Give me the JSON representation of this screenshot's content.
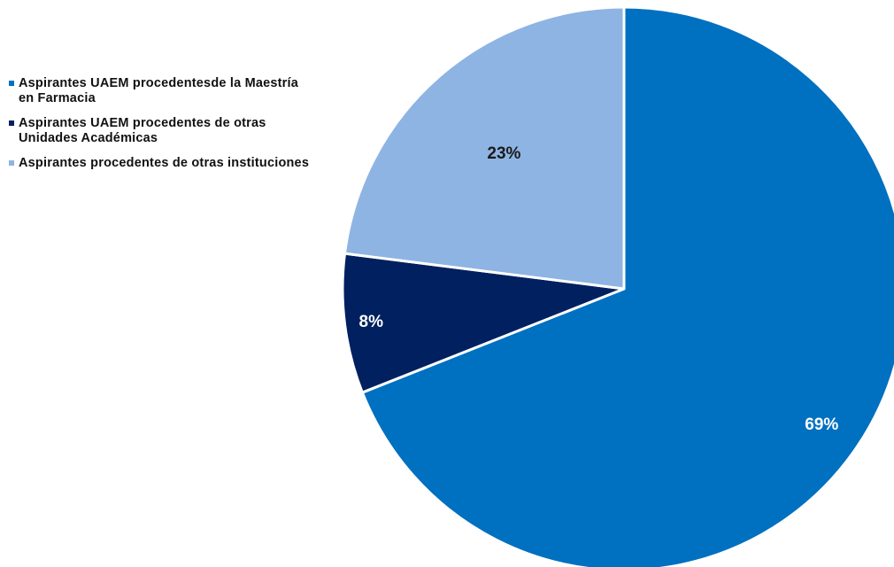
{
  "chart_data": {
    "type": "pie",
    "title": "",
    "legend_position": "left",
    "slices": [
      {
        "label": "Aspirantes UAEM procedentesde la Maestría en Farmacia",
        "value": 69,
        "display": "69%",
        "color": "#0070C0",
        "label_color": "#ffffff"
      },
      {
        "label": "Aspirantes UAEM procedentes de otras Unidades Académicas",
        "value": 8,
        "display": "8%",
        "color": "#002060",
        "label_color": "#ffffff"
      },
      {
        "label": "Aspirantes procedentes de otras instituciones",
        "value": 23,
        "display": "23%",
        "color": "#8EB4E3",
        "label_color": "#1a1a1a"
      }
    ]
  }
}
